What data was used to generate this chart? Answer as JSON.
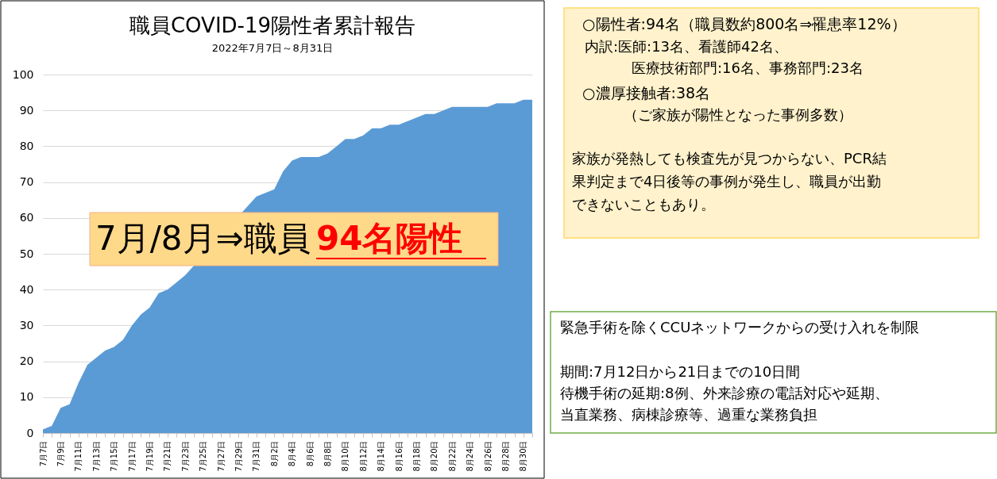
{
  "chart_data": {
    "type": "area",
    "title": "職員COVID-19陽性者累計報告",
    "subtitle": "2022年7月7日～8月31日",
    "categories": [
      "7月7日",
      null,
      "7月9日",
      null,
      "7月11日",
      null,
      "7月13日",
      null,
      "7月15日",
      null,
      "7月17日",
      null,
      "7月19日",
      null,
      "7月21日",
      null,
      "7月23日",
      null,
      "7月25日",
      null,
      "7月27日",
      null,
      "7月29日",
      null,
      "7月31日",
      null,
      "8月2日",
      null,
      "8月4日",
      null,
      "8月6日",
      null,
      "8月8日",
      null,
      "8月10日",
      null,
      "8月12日",
      null,
      "8月14日",
      null,
      "8月16日",
      null,
      "8月18日",
      null,
      "8月20日",
      null,
      "8月22日",
      null,
      "8月24日",
      null,
      "8月26日",
      null,
      "8月28日",
      null,
      "8月30日",
      null
    ],
    "series": [
      {
        "color": "#5b9bd5",
        "values": [
          1,
          2,
          7,
          8,
          14,
          19,
          21,
          23,
          24,
          26,
          30,
          33,
          35,
          39,
          40,
          42,
          44,
          null,
          null,
          null,
          null,
          null,
          null,
          null,
          66,
          67,
          68,
          73,
          76,
          77,
          77,
          77,
          78,
          80,
          82,
          82,
          83,
          85,
          85,
          86,
          86,
          87,
          88,
          89,
          89,
          90,
          91,
          91,
          91,
          91,
          91,
          92,
          92,
          92,
          93,
          93
        ]
      }
    ],
    "ylim": [
      0,
      100
    ],
    "yticks": [
      0,
      10,
      20,
      30,
      40,
      50,
      60,
      70,
      80,
      90,
      100
    ],
    "grid": "y",
    "annotations": [
      "7月/8月⇒職員",
      "94名陽性",
      "○陽性者:94名（職員数約800名⇒罹患率12%）",
      "内訳:医師:13名、看護師42名、",
      "医療技術部門:16名、事務部門:23名",
      "○濃厚接触者:38名",
      "（ご家族が陽性となった事例多数）",
      "家族が発熱しても検査先が見つからない、PCR結",
      "果判定まで4日後等の事例が発生し、職員が出勤",
      "できないこともあり。",
      "緊急手術を除くCCUネットワークからの受け入れを制限",
      "期間:7月12日から21日までの10日間",
      "待機手術の延期:8例、外来診療の電話対応や延期、",
      "当直業務、病棟診療等、過重な業務負担"
    ]
  }
}
